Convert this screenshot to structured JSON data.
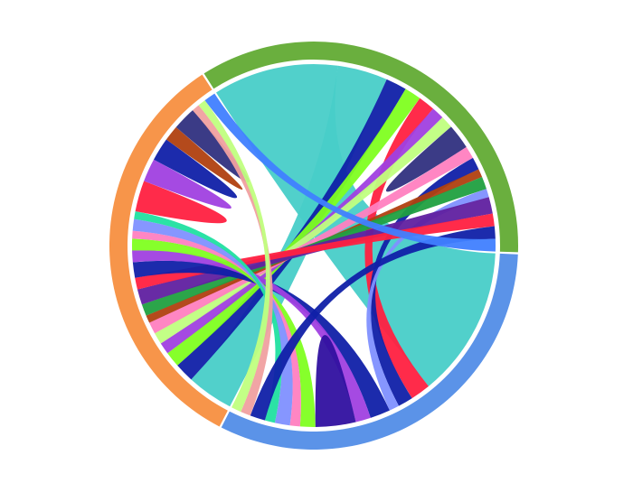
{
  "chart_data": {
    "type": "chord",
    "groups": [
      {
        "value": 125,
        "color": "#6aaf3e"
      },
      {
        "value": 115,
        "color": "#5b93e8"
      },
      {
        "value": 120,
        "color": "#f7954a"
      }
    ],
    "chords": [
      {
        "source": 1,
        "target": 0,
        "value": 30,
        "color": "#48cdc8"
      },
      {
        "source": 2,
        "target": 0,
        "value": 12,
        "color": "#48cdc8"
      },
      {
        "source": 0,
        "target": 2,
        "value": 5,
        "color": "#1020a8"
      },
      {
        "source": 0,
        "target": 2,
        "value": 4,
        "color": "#80ff20"
      },
      {
        "source": 0,
        "target": 1,
        "value": 4,
        "color": "#ff2040"
      },
      {
        "source": 0,
        "target": 2,
        "value": 3,
        "color": "#a040e0"
      },
      {
        "source": 0,
        "target": 2,
        "value": 3,
        "color": "#c0ff80"
      },
      {
        "source": 0,
        "target": 0,
        "value": 3,
        "color": "#303080"
      },
      {
        "source": 0,
        "target": 2,
        "value": 3,
        "color": "#ff80c0"
      },
      {
        "source": 0,
        "target": 1,
        "value": 3,
        "color": "#1020a8"
      },
      {
        "source": 0,
        "target": 2,
        "value": 2,
        "color": "#b04010"
      },
      {
        "source": 0,
        "target": 2,
        "value": 3,
        "color": "#20a040"
      },
      {
        "source": 0,
        "target": 1,
        "value": 2,
        "color": "#8090ff"
      },
      {
        "source": 0,
        "target": 2,
        "value": 4,
        "color": "#6020a0"
      },
      {
        "source": 0,
        "target": 2,
        "value": 3,
        "color": "#ff2040"
      },
      {
        "source": 1,
        "target": 2,
        "value": 4,
        "color": "#1020a8"
      },
      {
        "source": 1,
        "target": 2,
        "value": 3,
        "color": "#a040e0"
      },
      {
        "source": 1,
        "target": 1,
        "value": 4,
        "color": "#3010a0"
      },
      {
        "source": 1,
        "target": 2,
        "value": 3,
        "color": "#80ff20"
      },
      {
        "source": 1,
        "target": 2,
        "value": 2,
        "color": "#ff80c0"
      },
      {
        "source": 1,
        "target": 2,
        "value": 3,
        "color": "#8090ff"
      },
      {
        "source": 1,
        "target": 2,
        "value": 2,
        "color": "#20e0a0"
      },
      {
        "source": 1,
        "target": 0,
        "value": 3,
        "color": "#1020a8"
      },
      {
        "source": 2,
        "target": 2,
        "value": 4,
        "color": "#ff2040"
      },
      {
        "source": 2,
        "target": 2,
        "value": 3,
        "color": "#a040e0"
      },
      {
        "source": 2,
        "target": 2,
        "value": 3,
        "color": "#1020a8"
      },
      {
        "source": 2,
        "target": 2,
        "value": 2,
        "color": "#b04010"
      },
      {
        "source": 2,
        "target": 2,
        "value": 3,
        "color": "#303080"
      },
      {
        "source": 2,
        "target": 1,
        "value": 2,
        "color": "#f0a0a0"
      },
      {
        "source": 2,
        "target": 1,
        "value": 2,
        "color": "#c0ff80"
      },
      {
        "source": 2,
        "target": 0,
        "value": 3,
        "color": "#4080ff"
      }
    ]
  }
}
